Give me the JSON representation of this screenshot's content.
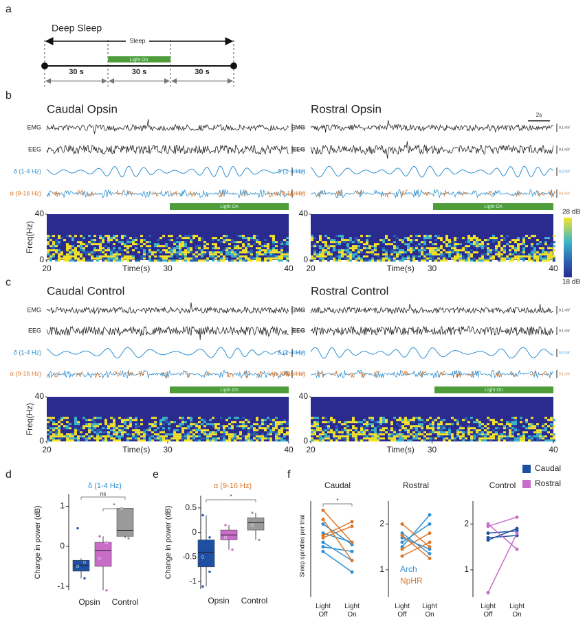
{
  "panel_a": {
    "label": "a",
    "title": "Deep Sleep",
    "sleep": "Sleep",
    "light": "Light On",
    "segments": [
      "30 s",
      "30 s",
      "30 s"
    ]
  },
  "traces": {
    "labels": [
      "EMG",
      "EEG",
      "δ (1-4 Hz)",
      "α (9-16 Hz)"
    ],
    "colors": [
      "#222222",
      "#222222",
      "#2f8fd0",
      "#d9772b"
    ],
    "time_scale": "2s",
    "light": "Light On"
  },
  "spectrogram": {
    "ylabel": "Freq(Hz)",
    "xlabel": "Time(s)",
    "xlim": [
      20,
      40
    ],
    "xticks": [
      20,
      30,
      40
    ],
    "ylim": [
      0,
      40
    ],
    "yticks": [
      0,
      40
    ],
    "colorbar": {
      "max_label": "28 dB",
      "min_label": "18 dB"
    }
  },
  "panel_b": {
    "label": "b",
    "plots": [
      {
        "title": "Caudal Opsin",
        "scales": [
          "0.1 mV",
          "0.1 mV",
          "0.2 mV",
          "0.1 mV"
        ]
      },
      {
        "title": "Rostral Opsin",
        "scales": [
          "0.1 mV",
          "0.1 mV",
          "0.2 mV",
          "0.1 mV"
        ]
      }
    ]
  },
  "panel_c": {
    "label": "c",
    "plots": [
      {
        "title": "Caudal Control",
        "scales": [
          "0.1 mV",
          "0.1 mV",
          "0.2 mV",
          "0.1 mV"
        ]
      },
      {
        "title": "Rostral Control",
        "scales": [
          "0.1 mV",
          "0.1 mV",
          "0.2 mV",
          "0.1 mV"
        ]
      }
    ]
  },
  "legend": [
    {
      "name": "Caudal",
      "color": "#1f4fa3"
    },
    {
      "name": "Rostral",
      "color": "#c86dc8"
    }
  ],
  "chart_data": [
    {
      "type": "box",
      "label": "d",
      "title": "δ (1-4 Hz)",
      "title_color": "#2f8fd0",
      "ylabel": "Change in power (dB)",
      "categories": [
        "Opsin",
        "Control"
      ],
      "ylim": [
        -1.1,
        1.3
      ],
      "yticks": [
        -1,
        0,
        1
      ],
      "annotations": [
        "ns",
        "*"
      ],
      "boxes": [
        {
          "color": "#1f4fa3",
          "min": -0.8,
          "q1": -0.62,
          "median": -0.47,
          "q3": -0.35,
          "max": -0.3,
          "points": [
            0.45,
            -0.8,
            -0.5,
            -0.4
          ]
        },
        {
          "color": "#c86dc8",
          "min": -1.1,
          "q1": -0.5,
          "median": -0.1,
          "q3": 0.1,
          "max": 0.25,
          "points": [
            0.25,
            0.1,
            -0.3,
            -1.1
          ]
        },
        {
          "color": "#9a9a9a",
          "min": 0.2,
          "q1": 0.25,
          "median": 0.4,
          "q3": 0.95,
          "max": 0.95,
          "points": [
            0.95,
            0.2
          ]
        }
      ]
    },
    {
      "type": "box",
      "label": "e",
      "title": "α (9-16 Hz)",
      "title_color": "#d9772b",
      "ylabel": "Change in power (dB)",
      "categories": [
        "Opsin",
        "Control"
      ],
      "ylim": [
        -1.15,
        0.75
      ],
      "yticks": [
        -1,
        -0.5,
        0,
        0.5
      ],
      "annotations": [
        "*"
      ],
      "boxes": [
        {
          "color": "#1f4fa3",
          "min": -1.1,
          "q1": -0.7,
          "median": -0.4,
          "q3": -0.15,
          "max": 0.35,
          "points": [
            0.35,
            -0.1,
            -0.5,
            -0.8,
            -1.1
          ]
        },
        {
          "color": "#c86dc8",
          "min": -0.35,
          "q1": -0.15,
          "median": -0.05,
          "q3": 0.05,
          "max": 0.15,
          "points": [
            0.15,
            -0.35,
            -0.1
          ]
        },
        {
          "color": "#9a9a9a",
          "min": -0.15,
          "q1": 0.05,
          "median": 0.2,
          "q3": 0.3,
          "max": 0.4,
          "points": [
            0.4,
            -0.15,
            0.15
          ]
        }
      ]
    },
    {
      "type": "line",
      "label": "f",
      "title": "Caudal",
      "ylabel": "Sleep spindles per trial",
      "categories": [
        "Light Off",
        "Light On"
      ],
      "ylim": [
        0.4,
        2.5
      ],
      "annotations": [
        "*"
      ],
      "series": [
        {
          "color": "#2f8fd0",
          "values": [
            1.6,
            1.2
          ]
        },
        {
          "color": "#2f8fd0",
          "values": [
            1.8,
            1.6
          ]
        },
        {
          "color": "#2f8fd0",
          "values": [
            1.4,
            0.95
          ]
        },
        {
          "color": "#2f8fd0",
          "values": [
            2.0,
            1.55
          ]
        },
        {
          "color": "#2f8fd0",
          "values": [
            1.5,
            1.4
          ]
        },
        {
          "color": "#d9772b",
          "values": [
            2.3,
            1.6
          ]
        },
        {
          "color": "#d9772b",
          "values": [
            1.75,
            2.05
          ]
        },
        {
          "color": "#d9772b",
          "values": [
            2.1,
            1.2
          ]
        },
        {
          "color": "#d9772b",
          "values": [
            1.7,
            1.95
          ]
        }
      ]
    },
    {
      "type": "line",
      "title": "Rostral",
      "categories": [
        "Light Off",
        "Light On"
      ],
      "ylim": [
        0.4,
        2.5
      ],
      "yticks": [
        1,
        2
      ],
      "legend": [
        {
          "name": "Arch",
          "color": "#2f8fd0"
        },
        {
          "name": "NpHR",
          "color": "#d9772b"
        }
      ],
      "series": [
        {
          "color": "#2f8fd0",
          "values": [
            1.5,
            2.2
          ]
        },
        {
          "color": "#2f8fd0",
          "values": [
            1.7,
            1.45
          ]
        },
        {
          "color": "#2f8fd0",
          "values": [
            1.8,
            1.35
          ]
        },
        {
          "color": "#2f8fd0",
          "values": [
            1.6,
            2.0
          ]
        },
        {
          "color": "#d9772b",
          "values": [
            2.0,
            1.5
          ]
        },
        {
          "color": "#d9772b",
          "values": [
            1.45,
            1.8
          ]
        },
        {
          "color": "#d9772b",
          "values": [
            1.75,
            1.25
          ]
        },
        {
          "color": "#d9772b",
          "values": [
            1.3,
            1.6
          ]
        }
      ]
    },
    {
      "type": "line",
      "title": "Control",
      "categories": [
        "Light Off",
        "Light On"
      ],
      "ylim": [
        0.4,
        2.5
      ],
      "yticks": [
        1,
        2
      ],
      "series": [
        {
          "color": "#1f4fa3",
          "values": [
            1.65,
            1.9
          ]
        },
        {
          "color": "#1f4fa3",
          "values": [
            1.8,
            1.85
          ]
        },
        {
          "color": "#1f4fa3",
          "values": [
            1.7,
            1.75
          ]
        },
        {
          "color": "#c86dc8",
          "values": [
            1.95,
            2.15
          ]
        },
        {
          "color": "#c86dc8",
          "values": [
            0.5,
            1.8
          ]
        },
        {
          "color": "#c86dc8",
          "values": [
            2.0,
            1.45
          ]
        }
      ]
    }
  ]
}
